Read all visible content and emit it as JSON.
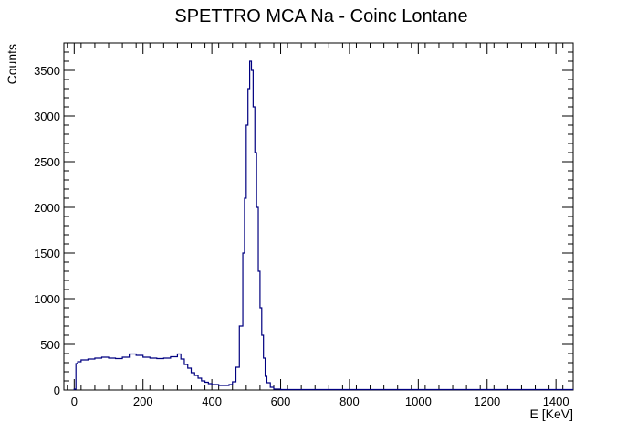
{
  "chart_data": {
    "type": "line",
    "title": "SPETTRO MCA Na - Coinc Lontane",
    "xlabel": "E [KeV]",
    "ylabel": "Counts",
    "xlim": [
      -30,
      1450
    ],
    "ylim": [
      0,
      3800
    ],
    "x_ticks": [
      0,
      200,
      400,
      600,
      800,
      1000,
      1200,
      1400
    ],
    "y_ticks": [
      0,
      500,
      1000,
      1500,
      2000,
      2500,
      3000,
      3500
    ],
    "x_tick_labels": [
      "0",
      "200",
      "400",
      "600",
      "800",
      "1000",
      "1200",
      "1400"
    ],
    "y_tick_labels": [
      "0",
      "500",
      "1000",
      "1500",
      "2000",
      "2500",
      "3000",
      "3500"
    ],
    "grid": false,
    "series_color": "#000080",
    "series": [
      {
        "x": [
          0,
          5,
          10,
          20,
          40,
          60,
          80,
          100,
          120,
          140,
          160,
          180,
          200,
          220,
          240,
          260,
          280,
          300,
          310,
          320,
          330,
          340,
          350,
          360,
          370,
          380,
          390,
          400,
          420,
          440,
          450,
          460,
          470,
          480,
          490,
          495,
          500,
          505,
          510,
          515,
          520,
          525,
          530,
          535,
          540,
          545,
          550,
          555,
          560,
          570,
          580,
          600,
          650,
          700,
          800,
          900,
          1000,
          1100,
          1200,
          1300,
          1400,
          1450
        ],
        "y": [
          10,
          290,
          310,
          330,
          340,
          350,
          360,
          350,
          345,
          360,
          395,
          380,
          360,
          350,
          345,
          350,
          365,
          395,
          340,
          280,
          240,
          190,
          160,
          130,
          100,
          85,
          70,
          60,
          50,
          50,
          60,
          90,
          250,
          700,
          1500,
          2100,
          2900,
          3300,
          3600,
          3500,
          3100,
          2600,
          2000,
          1300,
          900,
          600,
          350,
          150,
          80,
          30,
          10,
          5,
          5,
          5,
          5,
          5,
          5,
          5,
          5,
          5,
          5,
          5
        ]
      }
    ]
  }
}
